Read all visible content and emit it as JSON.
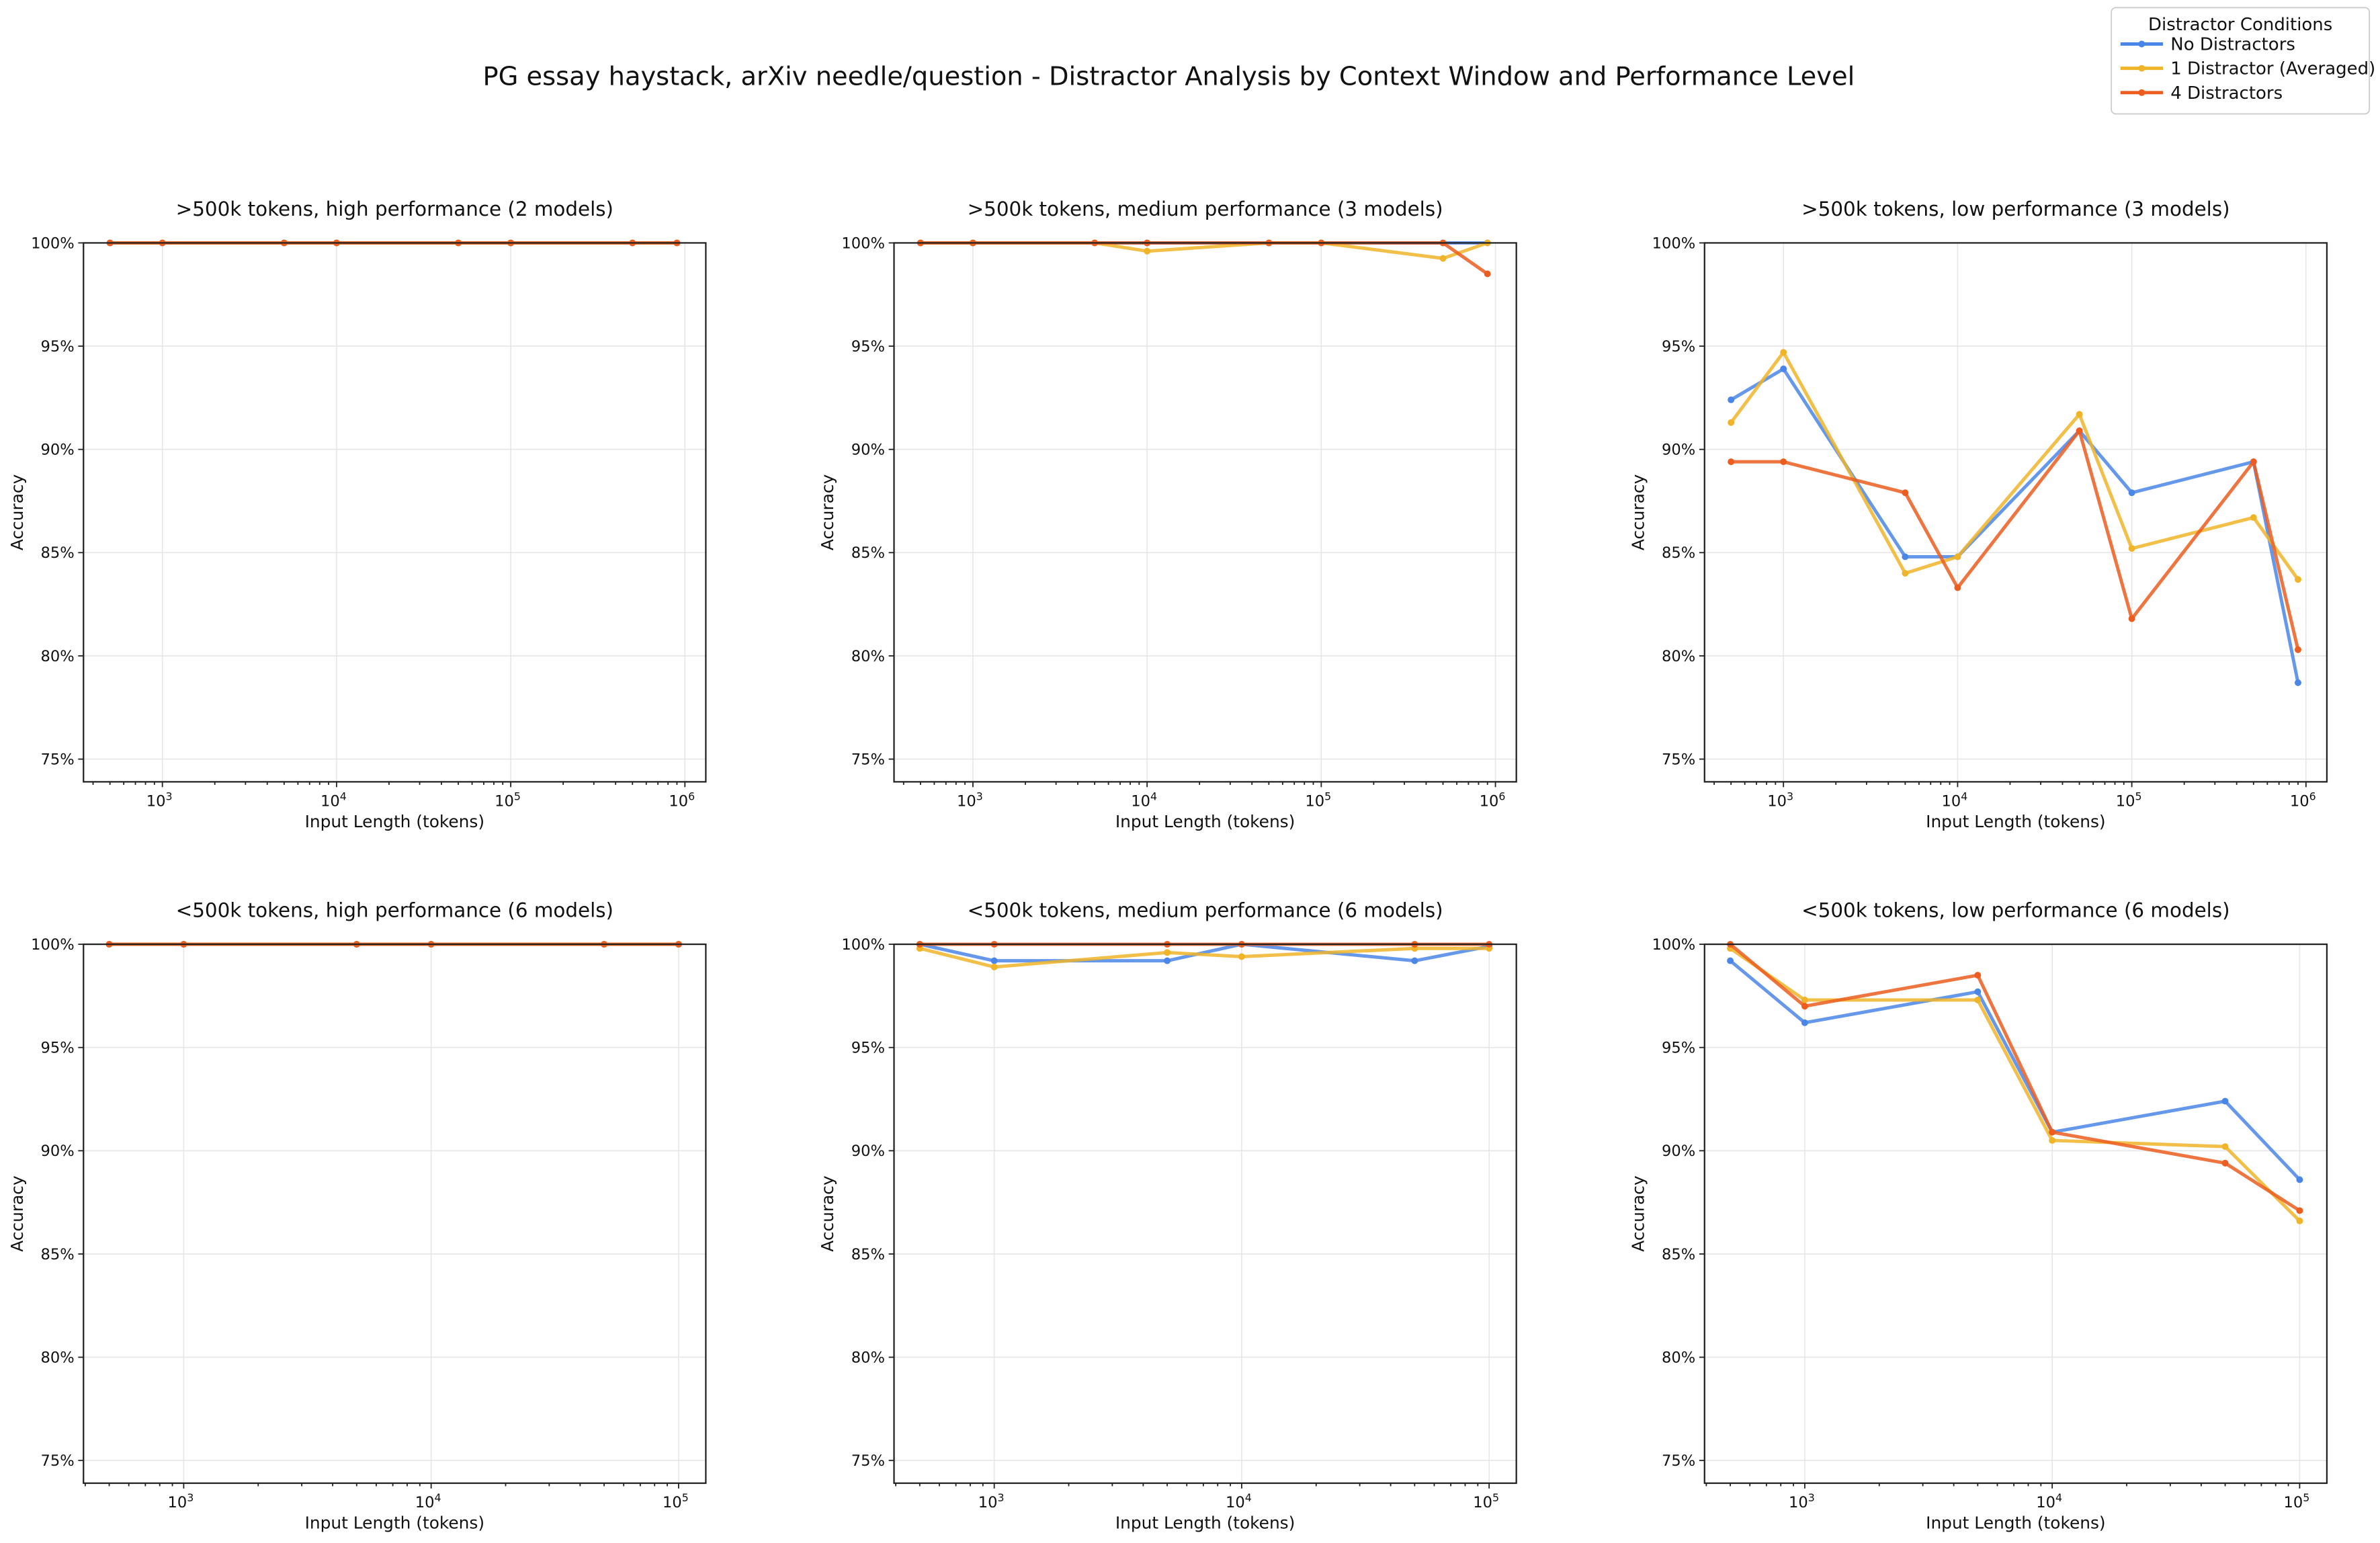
{
  "chart_data": {
    "title": "PG essay haystack, arXiv needle/question - Distractor Analysis by Context Window and Performance Level",
    "legend": {
      "title": "Distractor Conditions",
      "placement": "top-right",
      "entries": [
        "No Distractors",
        "1 Distractor (Averaged)",
        "4 Distractors"
      ]
    },
    "colors": {
      "No Distractors": "#4a86e8",
      "1 Distractor (Averaged)": "#f0b429",
      "4 Distractors": "#ec5d1f"
    },
    "panels": [
      {
        "type": "line",
        "title": ">500k tokens, high performance (2 models)",
        "xlabel": "Input Length (tokens)",
        "ylabel": "Accuracy",
        "xscale": "log",
        "xlim_log10": [
          2.547,
          6.12
        ],
        "ylim": [
          73.9,
          100
        ],
        "xticks": [
          "10^3",
          "10^4",
          "10^5",
          "10^6"
        ],
        "yticks": [
          "75%",
          "80%",
          "85%",
          "90%",
          "95%",
          "100%"
        ],
        "grid": true,
        "x": [
          500,
          1000,
          5000,
          10000,
          50000,
          100000,
          500000,
          900000
        ],
        "series": [
          {
            "name": "No Distractors",
            "values": [
              100,
              100,
              100,
              100,
              100,
              100,
              100,
              100
            ]
          },
          {
            "name": "1 Distractor (Averaged)",
            "values": [
              100,
              100,
              100,
              100,
              100,
              100,
              100,
              100
            ]
          },
          {
            "name": "4 Distractors",
            "values": [
              100,
              100,
              100,
              100,
              100,
              100,
              100,
              100
            ]
          }
        ]
      },
      {
        "type": "line",
        "title": ">500k tokens, medium performance (3 models)",
        "xlabel": "Input Length (tokens)",
        "ylabel": "Accuracy",
        "xscale": "log",
        "xlim_log10": [
          2.547,
          6.12
        ],
        "ylim": [
          73.9,
          100
        ],
        "xticks": [
          "10^3",
          "10^4",
          "10^5",
          "10^6"
        ],
        "yticks": [
          "75%",
          "80%",
          "85%",
          "90%",
          "95%",
          "100%"
        ],
        "grid": true,
        "x": [
          500,
          1000,
          5000,
          10000,
          50000,
          100000,
          500000,
          900000
        ],
        "series": [
          {
            "name": "No Distractors",
            "values": [
              100,
              100,
              100,
              100,
              100,
              100,
              100,
              100
            ]
          },
          {
            "name": "1 Distractor (Averaged)",
            "values": [
              100,
              100,
              100,
              99.6,
              100,
              100,
              99.25,
              100
            ]
          },
          {
            "name": "4 Distractors",
            "values": [
              100,
              100,
              100,
              100,
              100,
              100,
              100,
              98.5
            ]
          }
        ]
      },
      {
        "type": "line",
        "title": ">500k tokens, low performance (3 models)",
        "xlabel": "Input Length (tokens)",
        "ylabel": "Accuracy",
        "xscale": "log",
        "xlim_log10": [
          2.547,
          6.12
        ],
        "ylim": [
          73.9,
          100
        ],
        "xticks": [
          "10^3",
          "10^4",
          "10^5",
          "10^6"
        ],
        "yticks": [
          "75%",
          "80%",
          "85%",
          "90%",
          "95%",
          "100%"
        ],
        "grid": true,
        "x": [
          500,
          1000,
          5000,
          10000,
          50000,
          100000,
          500000,
          900000
        ],
        "series": [
          {
            "name": "No Distractors",
            "values": [
              92.4,
              93.9,
              84.8,
              84.8,
              90.9,
              87.9,
              89.4,
              78.7
            ]
          },
          {
            "name": "1 Distractor (Averaged)",
            "values": [
              91.3,
              94.7,
              84.0,
              84.8,
              91.7,
              85.2,
              86.7,
              83.7
            ]
          },
          {
            "name": "4 Distractors",
            "values": [
              89.4,
              89.4,
              87.9,
              83.3,
              90.9,
              81.8,
              89.4,
              80.3
            ]
          }
        ]
      },
      {
        "type": "line",
        "title": "<500k tokens, high performance (6 models)",
        "xlabel": "Input Length (tokens)",
        "ylabel": "Accuracy",
        "xscale": "log",
        "xlim_log10": [
          2.595,
          5.11
        ],
        "ylim": [
          73.9,
          100
        ],
        "xticks": [
          "10^3",
          "10^4",
          "10^5"
        ],
        "yticks": [
          "75%",
          "80%",
          "85%",
          "90%",
          "95%",
          "100%"
        ],
        "grid": true,
        "x": [
          500,
          1000,
          5000,
          10000,
          50000,
          100000
        ],
        "series": [
          {
            "name": "No Distractors",
            "values": [
              100,
              100,
              100,
              100,
              100,
              100
            ]
          },
          {
            "name": "1 Distractor (Averaged)",
            "values": [
              100,
              100,
              100,
              100,
              100,
              100
            ]
          },
          {
            "name": "4 Distractors",
            "values": [
              100,
              100,
              100,
              100,
              100,
              100
            ]
          }
        ]
      },
      {
        "type": "line",
        "title": "<500k tokens, medium performance (6 models)",
        "xlabel": "Input Length (tokens)",
        "ylabel": "Accuracy",
        "xscale": "log",
        "xlim_log10": [
          2.595,
          5.11
        ],
        "ylim": [
          73.9,
          100
        ],
        "xticks": [
          "10^3",
          "10^4",
          "10^5"
        ],
        "yticks": [
          "75%",
          "80%",
          "85%",
          "90%",
          "95%",
          "100%"
        ],
        "grid": true,
        "x": [
          500,
          1000,
          5000,
          10000,
          50000,
          100000
        ],
        "series": [
          {
            "name": "No Distractors",
            "values": [
              100,
              99.2,
              99.2,
              100,
              99.2,
              99.9
            ]
          },
          {
            "name": "1 Distractor (Averaged)",
            "values": [
              99.8,
              98.9,
              99.6,
              99.4,
              99.8,
              99.8
            ]
          },
          {
            "name": "4 Distractors",
            "values": [
              100,
              100,
              100,
              100,
              100,
              100
            ]
          }
        ]
      },
      {
        "type": "line",
        "title": "<500k tokens, low performance (6 models)",
        "xlabel": "Input Length (tokens)",
        "ylabel": "Accuracy",
        "xscale": "log",
        "xlim_log10": [
          2.595,
          5.11
        ],
        "ylim": [
          73.9,
          100
        ],
        "xticks": [
          "10^3",
          "10^4",
          "10^5"
        ],
        "yticks": [
          "75%",
          "80%",
          "85%",
          "90%",
          "95%",
          "100%"
        ],
        "grid": true,
        "x": [
          500,
          1000,
          5000,
          10000,
          50000,
          100000
        ],
        "series": [
          {
            "name": "No Distractors",
            "values": [
              99.2,
              96.2,
              97.7,
              90.9,
              92.4,
              88.6
            ]
          },
          {
            "name": "1 Distractor (Averaged)",
            "values": [
              99.8,
              97.3,
              97.3,
              90.5,
              90.2,
              86.6
            ]
          },
          {
            "name": "4 Distractors",
            "values": [
              100,
              97.0,
              98.5,
              90.9,
              89.4,
              87.1
            ]
          }
        ]
      }
    ]
  }
}
